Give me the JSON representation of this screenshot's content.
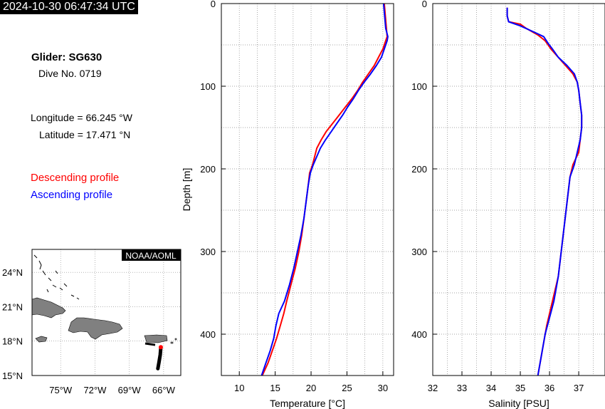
{
  "header": {
    "timestamp": "2024-10-30 06:47:34 UTC"
  },
  "info": {
    "glider": "Glider: SG630",
    "dive": "Dive No. 0719",
    "longitude": "Longitude = 66.245 °W",
    "latitude": "Latitude = 17.471 °N"
  },
  "legend": {
    "descending": {
      "label": "Descending profile",
      "color": "#ff0000"
    },
    "ascending": {
      "label": "Ascending profile",
      "color": "#0000ff"
    }
  },
  "map": {
    "badge": "NOAA/AOML",
    "lat_ticks": [
      "24°N",
      "21°N",
      "18°N",
      "15°N"
    ],
    "lon_ticks": [
      "75°W",
      "72°W",
      "69°W",
      "66°W"
    ],
    "glider_position": {
      "lon": -66.245,
      "lat": 17.471
    },
    "track": [
      [
        -66.25,
        17.4
      ],
      [
        -66.3,
        16.8
      ],
      [
        -66.4,
        16.2
      ],
      [
        -66.5,
        15.6
      ]
    ]
  },
  "chart_data": [
    {
      "type": "line",
      "name": "temperature-profile",
      "xlabel": "Temperature [°C]",
      "ylabel": "Depth [m]",
      "xlim": [
        7.5,
        31.5
      ],
      "ylim": [
        450,
        0
      ],
      "xticks": [
        10,
        15,
        20,
        25,
        30
      ],
      "yticks": [
        0,
        100,
        200,
        300,
        400
      ],
      "grid": true,
      "series": [
        {
          "name": "Descending profile",
          "color": "#ff0000",
          "points": [
            [
              30.2,
              0
            ],
            [
              30.3,
              10
            ],
            [
              30.4,
              20
            ],
            [
              30.5,
              30
            ],
            [
              30.6,
              40
            ],
            [
              30.4,
              45
            ],
            [
              30.0,
              55
            ],
            [
              29.4,
              65
            ],
            [
              28.8,
              75
            ],
            [
              28.0,
              85
            ],
            [
              27.2,
              95
            ],
            [
              26.5,
              105
            ],
            [
              25.7,
              115
            ],
            [
              24.8,
              125
            ],
            [
              23.9,
              135
            ],
            [
              23.0,
              145
            ],
            [
              22.1,
              155
            ],
            [
              21.4,
              165
            ],
            [
              20.8,
              175
            ],
            [
              20.5,
              185
            ],
            [
              20.2,
              195
            ],
            [
              19.8,
              205
            ],
            [
              19.6,
              220
            ],
            [
              19.3,
              240
            ],
            [
              19.0,
              260
            ],
            [
              18.7,
              280
            ],
            [
              18.3,
              300
            ],
            [
              17.8,
              320
            ],
            [
              17.2,
              340
            ],
            [
              16.6,
              360
            ],
            [
              16.2,
              375
            ],
            [
              15.7,
              390
            ],
            [
              15.2,
              405
            ],
            [
              14.6,
              420
            ],
            [
              14.0,
              435
            ],
            [
              13.2,
              450
            ]
          ]
        },
        {
          "name": "Ascending profile",
          "color": "#0000ff",
          "points": [
            [
              30.1,
              0
            ],
            [
              30.2,
              10
            ],
            [
              30.3,
              20
            ],
            [
              30.4,
              30
            ],
            [
              30.7,
              40
            ],
            [
              30.6,
              45
            ],
            [
              30.2,
              55
            ],
            [
              29.8,
              65
            ],
            [
              29.1,
              75
            ],
            [
              28.3,
              85
            ],
            [
              27.4,
              95
            ],
            [
              26.6,
              105
            ],
            [
              25.9,
              115
            ],
            [
              25.1,
              125
            ],
            [
              24.4,
              135
            ],
            [
              23.6,
              145
            ],
            [
              22.8,
              155
            ],
            [
              22.0,
              165
            ],
            [
              21.3,
              175
            ],
            [
              20.8,
              185
            ],
            [
              20.3,
              195
            ],
            [
              19.9,
              205
            ],
            [
              19.6,
              220
            ],
            [
              19.3,
              240
            ],
            [
              19.0,
              260
            ],
            [
              18.6,
              280
            ],
            [
              18.1,
              300
            ],
            [
              17.6,
              320
            ],
            [
              17.0,
              340
            ],
            [
              16.3,
              360
            ],
            [
              15.5,
              375
            ],
            [
              15.1,
              390
            ],
            [
              14.8,
              405
            ],
            [
              14.3,
              420
            ],
            [
              13.7,
              435
            ],
            [
              13.1,
              450
            ]
          ]
        }
      ]
    },
    {
      "type": "line",
      "name": "salinity-profile",
      "xlabel": "Salinity [PSU]",
      "ylabel": "",
      "xlim": [
        32,
        37.9
      ],
      "ylim": [
        450,
        0
      ],
      "xticks": [
        32,
        33,
        34,
        35,
        36,
        37
      ],
      "yticks": [
        0,
        100,
        200,
        300,
        400
      ],
      "grid": true,
      "series": [
        {
          "name": "Descending profile",
          "color": "#ff0000",
          "points": [
            [
              34.55,
              5
            ],
            [
              34.55,
              15
            ],
            [
              34.6,
              22
            ],
            [
              35.0,
              25
            ],
            [
              35.2,
              30
            ],
            [
              35.6,
              38
            ],
            [
              35.85,
              45
            ],
            [
              36.05,
              55
            ],
            [
              36.3,
              65
            ],
            [
              36.55,
              75
            ],
            [
              36.8,
              85
            ],
            [
              36.95,
              95
            ],
            [
              37.0,
              105
            ],
            [
              37.05,
              120
            ],
            [
              37.1,
              135
            ],
            [
              37.1,
              150
            ],
            [
              37.05,
              165
            ],
            [
              37.0,
              180
            ],
            [
              36.8,
              195
            ],
            [
              36.7,
              210
            ],
            [
              36.6,
              240
            ],
            [
              36.5,
              270
            ],
            [
              36.4,
              300
            ],
            [
              36.3,
              330
            ],
            [
              36.1,
              360
            ],
            [
              35.9,
              390
            ],
            [
              35.8,
              410
            ],
            [
              35.7,
              430
            ],
            [
              35.6,
              450
            ]
          ]
        },
        {
          "name": "Ascending profile",
          "color": "#0000ff",
          "points": [
            [
              34.55,
              5
            ],
            [
              34.55,
              15
            ],
            [
              34.6,
              22
            ],
            [
              35.0,
              27
            ],
            [
              35.5,
              35
            ],
            [
              35.8,
              40
            ],
            [
              35.95,
              48
            ],
            [
              36.1,
              55
            ],
            [
              36.3,
              65
            ],
            [
              36.6,
              75
            ],
            [
              36.85,
              85
            ],
            [
              36.95,
              95
            ],
            [
              37.0,
              105
            ],
            [
              37.05,
              120
            ],
            [
              37.1,
              135
            ],
            [
              37.1,
              150
            ],
            [
              37.05,
              165
            ],
            [
              36.95,
              180
            ],
            [
              36.85,
              195
            ],
            [
              36.7,
              210
            ],
            [
              36.6,
              240
            ],
            [
              36.5,
              270
            ],
            [
              36.4,
              300
            ],
            [
              36.3,
              330
            ],
            [
              36.15,
              360
            ],
            [
              36.0,
              380
            ],
            [
              35.85,
              400
            ],
            [
              35.7,
              430
            ],
            [
              35.6,
              450
            ]
          ]
        }
      ]
    }
  ]
}
